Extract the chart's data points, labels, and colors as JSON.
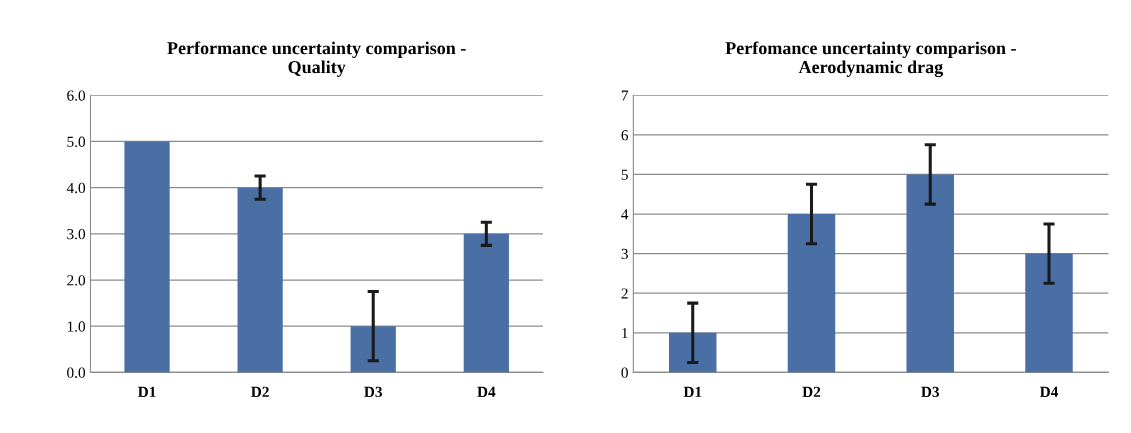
{
  "chart_data": [
    {
      "type": "bar",
      "title": "Performance uncertainty comparison -\nQuality",
      "categories": [
        "D1",
        "D2",
        "D3",
        "D4"
      ],
      "values": [
        5,
        4,
        1,
        3
      ],
      "errors": [
        null,
        0.25,
        0.75,
        0.25
      ],
      "color": "#4a6fa5",
      "ylim": [
        0,
        6
      ],
      "yticks": [
        {
          "value": 0,
          "label": "0.0"
        },
        {
          "value": 1,
          "label": "1.0"
        },
        {
          "value": 2,
          "label": "2.0"
        },
        {
          "value": 3,
          "label": "3.0"
        },
        {
          "value": 4,
          "label": "4.0"
        },
        {
          "value": 5,
          "label": "5.0"
        },
        {
          "value": 6,
          "label": "6.0"
        }
      ],
      "grid": "y"
    },
    {
      "type": "bar",
      "title": "Perfomance uncertainty comparison -\nAerodynamic drag",
      "categories": [
        "D1",
        "D2",
        "D3",
        "D4"
      ],
      "values": [
        1,
        4,
        5,
        3
      ],
      "errors": [
        0.75,
        0.75,
        0.75,
        0.75
      ],
      "color": "#4a6fa5",
      "ylim": [
        0,
        7
      ],
      "yticks": [
        0,
        1,
        2,
        3,
        4,
        5,
        6,
        7
      ],
      "grid": "y"
    }
  ]
}
